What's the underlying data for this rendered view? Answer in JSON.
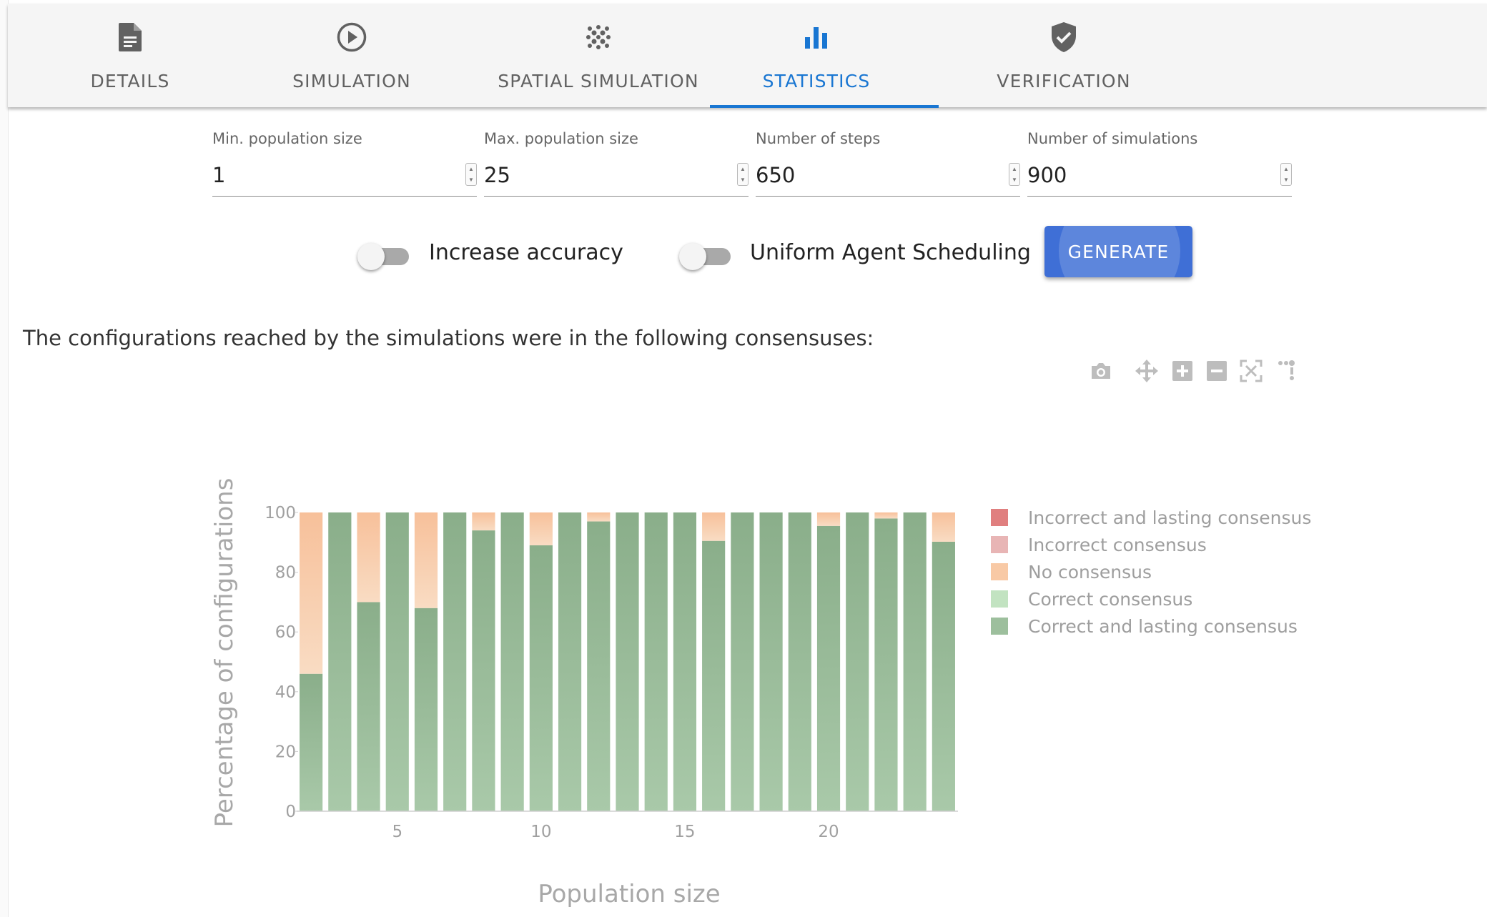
{
  "tabs": [
    {
      "label": "DETAILS",
      "icon": "document-icon",
      "active": false
    },
    {
      "label": "SIMULATION",
      "icon": "play-circle-icon",
      "active": false
    },
    {
      "label": "SPATIAL SIMULATION",
      "icon": "dots-grid-icon",
      "active": false
    },
    {
      "label": "STATISTICS",
      "icon": "bar-chart-icon",
      "active": true
    },
    {
      "label": "VERIFICATION",
      "icon": "shield-check-icon",
      "active": false
    }
  ],
  "inputs": [
    {
      "label": "Min. population size",
      "value": "1"
    },
    {
      "label": "Max. population size",
      "value": "25"
    },
    {
      "label": "Number of steps",
      "value": "650"
    },
    {
      "label": "Number of simulations",
      "value": "900"
    }
  ],
  "toggles": [
    {
      "label": "Increase accuracy",
      "on": false
    },
    {
      "label": "Uniform Agent Scheduling",
      "on": false
    }
  ],
  "generate_label": "GENERATE",
  "caption": "The configurations reached by the simulations were in the following consensuses:",
  "modebar": [
    "camera-icon",
    "pan-icon",
    "zoom-in-icon",
    "zoom-out-icon",
    "autoscale-icon",
    "plotly-logo-icon"
  ],
  "colors": {
    "accent": "#1976d2",
    "button": "#3f6fd6",
    "incorrect_lasting": "#e07f7f",
    "incorrect": "#e8b5b5",
    "no_consensus": "#f8c9a5",
    "correct": "#c2e3c1",
    "correct_lasting": "#9dbf9d"
  },
  "chart_data": {
    "type": "bar",
    "stacked": true,
    "xlabel": "Population size",
    "ylabel": "Percentage of configurations",
    "ylim": [
      0,
      100
    ],
    "xlim": [
      1.5,
      24.5
    ],
    "x_ticks": [
      5,
      10,
      15,
      20
    ],
    "y_ticks": [
      0,
      20,
      40,
      60,
      80,
      100
    ],
    "grid": false,
    "legend_position": "right",
    "x": [
      2,
      3,
      4,
      5,
      6,
      7,
      8,
      9,
      10,
      11,
      12,
      13,
      14,
      15,
      16,
      17,
      18,
      19,
      20,
      21,
      22,
      23,
      24
    ],
    "series": [
      {
        "name": "Incorrect and lasting consensus",
        "color": "#e07f7f",
        "values": [
          0,
          0,
          0,
          0,
          0,
          0,
          0,
          0,
          0,
          0,
          0,
          0,
          0,
          0,
          0,
          0,
          0,
          0,
          0,
          0,
          0,
          0,
          0
        ]
      },
      {
        "name": "Incorrect consensus",
        "color": "#e8b5b5",
        "values": [
          0,
          0,
          0,
          0,
          0,
          0,
          0,
          0,
          0,
          0,
          0,
          0,
          0,
          0,
          0,
          0,
          0,
          0,
          0,
          0,
          0,
          0,
          0
        ]
      },
      {
        "name": "No consensus",
        "color": "#f8c9a5",
        "values": [
          54,
          0,
          30,
          0,
          32,
          0,
          6,
          0,
          11,
          0,
          3,
          0,
          0,
          0,
          9.5,
          0,
          0,
          0,
          4.5,
          0,
          2,
          0,
          9.8
        ]
      },
      {
        "name": "Correct consensus",
        "color": "#c2e3c1",
        "values": [
          0,
          0,
          0,
          0,
          0,
          0,
          0,
          0,
          0,
          0,
          0,
          0,
          0,
          0,
          0,
          0,
          0,
          0,
          0,
          0,
          0,
          0,
          0
        ]
      },
      {
        "name": "Correct and lasting consensus",
        "color": "#9dbf9d",
        "values": [
          46,
          100,
          70,
          100,
          68,
          100,
          94,
          100,
          89,
          100,
          97,
          100,
          100,
          100,
          90.5,
          100,
          100,
          100,
          95.5,
          100,
          98,
          100,
          90.2
        ]
      }
    ]
  }
}
